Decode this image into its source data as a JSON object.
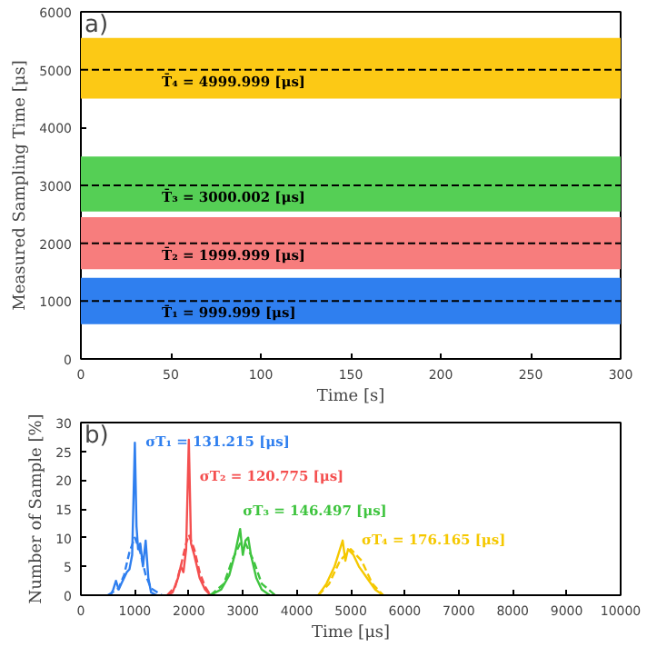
{
  "chart_data": [
    {
      "type": "line",
      "xlabel": "Time [s]",
      "ylabel": "Measured Sampling Time [μs]",
      "xlim": [
        0,
        300
      ],
      "ylim": [
        0,
        6000
      ],
      "xticks": [
        0,
        50,
        100,
        150,
        200,
        250,
        300
      ],
      "yticks": [
        0,
        1000,
        2000,
        3000,
        4000,
        5000,
        6000
      ],
      "annotations": [
        "a)"
      ],
      "bands": [
        {
          "axis": "y",
          "from": 600,
          "to": 1400,
          "color": "#2f7fef"
        },
        {
          "axis": "y",
          "from": 1550,
          "to": 2450,
          "color": "#f77d7d"
        },
        {
          "axis": "y",
          "from": 2550,
          "to": 3500,
          "color": "#55cf55"
        },
        {
          "axis": "y",
          "from": 4500,
          "to": 5550,
          "color": "#fcc915"
        }
      ],
      "ref_lines": [
        {
          "axis": "y",
          "value": 999.999,
          "label": "T̄₁ = 999.999 [μs]",
          "color": "#000000",
          "line_style": "dashed"
        },
        {
          "axis": "y",
          "value": 1999.999,
          "label": "T̄₂ = 1999.999 [μs]",
          "color": "#000000",
          "line_style": "dashed"
        },
        {
          "axis": "y",
          "value": 3000.002,
          "label": "T̄₃ = 3000.002 [μs]",
          "color": "#000000",
          "line_style": "dashed"
        },
        {
          "axis": "y",
          "value": 4999.999,
          "label": "T̄₄ = 4999.999 [μs]",
          "color": "#000000",
          "line_style": "dashed"
        }
      ]
    },
    {
      "type": "line",
      "xlabel": "Time [μs]",
      "ylabel": "Number of Sample [%]",
      "xlim": [
        0,
        10000
      ],
      "ylim": [
        0,
        30
      ],
      "xticks": [
        0,
        1000,
        2000,
        3000,
        4000,
        5000,
        6000,
        7000,
        8000,
        9000,
        10000
      ],
      "yticks": [
        0,
        5,
        10,
        15,
        20,
        25,
        30
      ],
      "annotations": [
        "b)",
        "σT₁ = 131.215 [μs]",
        "σT₂ = 120.775 [μs]",
        "σT₃ = 146.497 [μs]",
        "σT₄ = 176.165 [μs]"
      ],
      "series": [
        {
          "color": "#2f7fef",
          "line_style": "solid",
          "x": [
            550,
            600,
            650,
            700,
            750,
            800,
            850,
            900,
            950,
            1000,
            1030,
            1060,
            1100,
            1150,
            1200,
            1250,
            1300,
            1400
          ],
          "values": [
            0,
            1,
            2.5,
            1,
            2,
            3,
            4,
            4.5,
            7,
            26.5,
            12,
            8,
            9,
            5,
            9.5,
            3,
            0.5,
            0
          ]
        },
        {
          "color": "#2f7fef",
          "line_style": "dashed",
          "x": [
            500,
            700,
            800,
            900,
            1000,
            1100,
            1200,
            1300,
            1500
          ],
          "values": [
            0,
            1.2,
            3.5,
            7.5,
            10,
            7.5,
            3.5,
            1.2,
            0
          ]
        },
        {
          "color": "#f44f4f",
          "line_style": "solid",
          "x": [
            1600,
            1700,
            1800,
            1850,
            1900,
            1950,
            2000,
            2040,
            2100,
            2150,
            2200,
            2300,
            2400
          ],
          "values": [
            0,
            0.5,
            3,
            5,
            4,
            8,
            27,
            9,
            7,
            5,
            3,
            1,
            0
          ]
        },
        {
          "color": "#f44f4f",
          "line_style": "dashed",
          "x": [
            1600,
            1750,
            1850,
            1950,
            2000,
            2100,
            2200,
            2300,
            2400
          ],
          "values": [
            0,
            1.5,
            5,
            9,
            10.5,
            8,
            4,
            1.5,
            0
          ]
        },
        {
          "color": "#3fc43f",
          "line_style": "solid",
          "x": [
            2400,
            2600,
            2750,
            2850,
            2950,
            3000,
            3050,
            3100,
            3150,
            3250,
            3350,
            3500
          ],
          "values": [
            0,
            1,
            3.5,
            7,
            11.5,
            7,
            9.5,
            10,
            7,
            3,
            1,
            0
          ]
        },
        {
          "color": "#3fc43f",
          "line_style": "dashed",
          "x": [
            2400,
            2650,
            2800,
            2950,
            3050,
            3200,
            3350,
            3600
          ],
          "values": [
            0,
            2,
            6,
            9,
            9,
            6,
            2,
            0
          ]
        },
        {
          "color": "#f5c800",
          "line_style": "solid",
          "x": [
            4400,
            4550,
            4700,
            4850,
            4900,
            4950,
            5050,
            5150,
            5300,
            5450,
            5600
          ],
          "values": [
            0,
            2,
            5,
            9.5,
            6,
            8,
            7,
            5,
            3,
            1,
            0
          ]
        },
        {
          "color": "#f5c800",
          "line_style": "dashed",
          "x": [
            4400,
            4600,
            4800,
            5000,
            5200,
            5400,
            5600
          ],
          "values": [
            0,
            2,
            6,
            8,
            6,
            2,
            0
          ]
        }
      ]
    }
  ]
}
